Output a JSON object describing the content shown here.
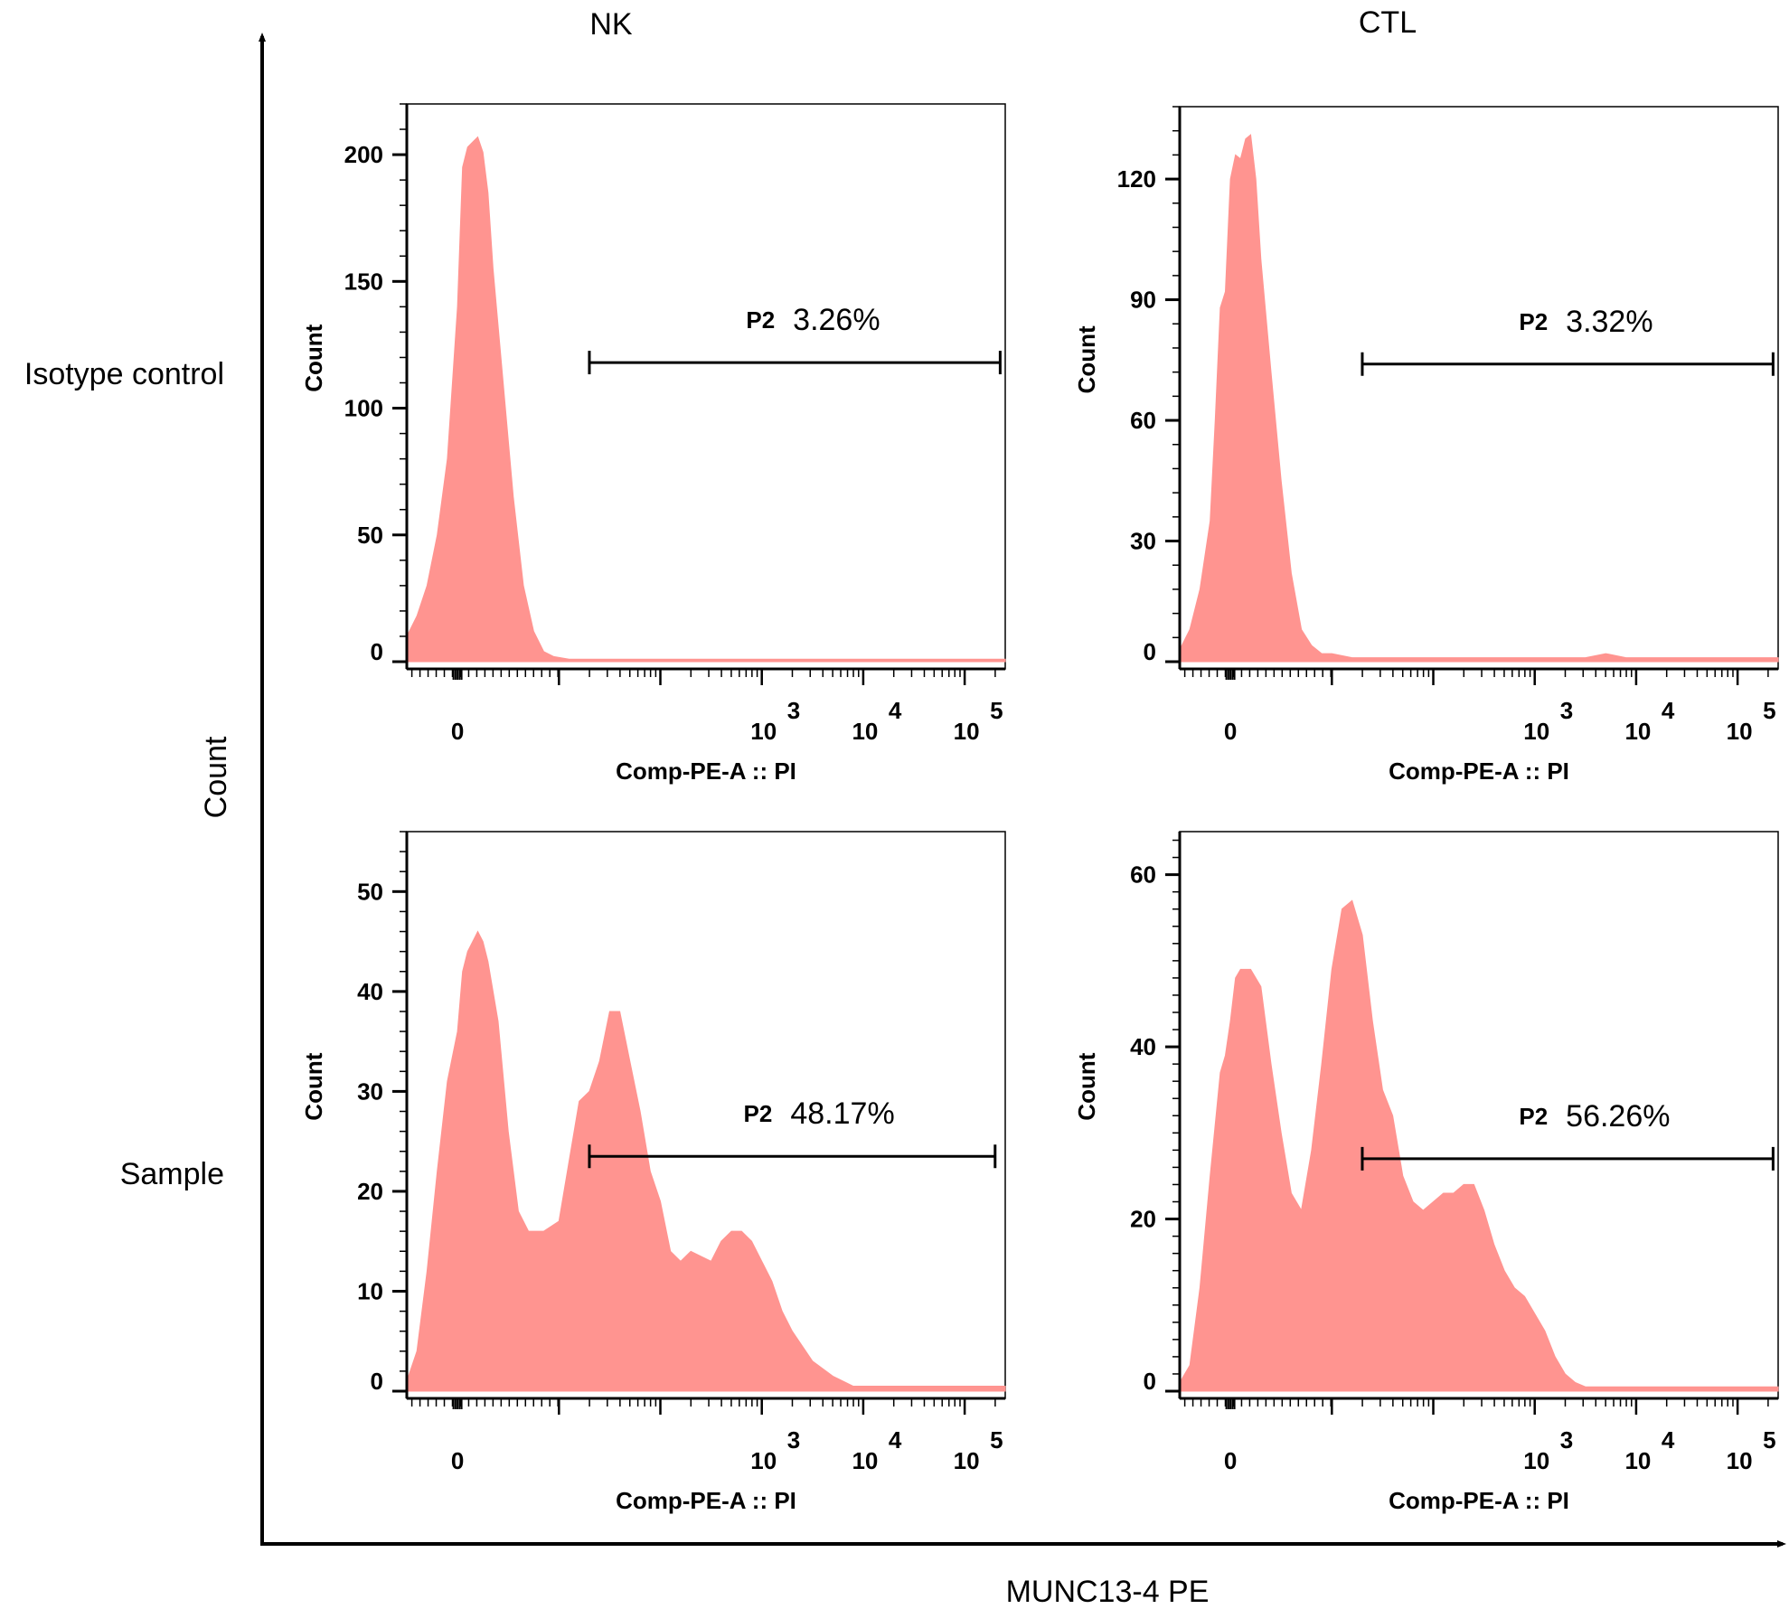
{
  "figure": {
    "col_labels": [
      "NK",
      "CTL"
    ],
    "row_labels": [
      "Isotype control",
      "Sample"
    ],
    "y_label": "Count",
    "x_label": "MUNC13-4 PE"
  },
  "colors": {
    "fill": "#ff9490",
    "axis": "#000000"
  },
  "chart_data": [
    {
      "type": "area",
      "panel": "NK / Isotype control",
      "xlabel": "Comp-PE-A :: PI",
      "ylabel": "Count",
      "ylim": [
        0,
        220
      ],
      "y_ticks": [
        "0",
        "50",
        "100",
        "150",
        "200"
      ],
      "y_tick_values": [
        0,
        50,
        100,
        150,
        200
      ],
      "y_minor_step": 10,
      "x_ticks": [
        {
          "base": "0",
          "exp": ""
        },
        {
          "base": "10",
          "exp": "3"
        },
        {
          "base": "10",
          "exp": "4"
        },
        {
          "base": "10",
          "exp": "5"
        }
      ],
      "x_tick_values": [
        0,
        3,
        4,
        5
      ],
      "x_range": [
        -0.5,
        5.4
      ],
      "x_units": "axis position: 0 = zero channel, 3/4/5 = log10 decades",
      "gate": {
        "name": "P2",
        "percent": "3.26%",
        "x_start": 1.3,
        "x_end": 5.35,
        "y": 118
      },
      "series": [
        {
          "name": "Count",
          "x": [
            -0.5,
            -0.4,
            -0.3,
            -0.2,
            -0.1,
            0.0,
            0.05,
            0.1,
            0.15,
            0.2,
            0.25,
            0.3,
            0.35,
            0.45,
            0.55,
            0.65,
            0.75,
            0.85,
            0.95,
            1.1,
            1.3,
            1.6,
            2.0,
            3.0,
            4.0,
            5.0,
            5.4
          ],
          "y": [
            10,
            18,
            30,
            50,
            80,
            140,
            195,
            203,
            205,
            207,
            201,
            185,
            155,
            110,
            65,
            30,
            12,
            4,
            2,
            1,
            1,
            1,
            1,
            1,
            1,
            1,
            1
          ]
        }
      ]
    },
    {
      "type": "area",
      "panel": "CTL / Isotype control",
      "xlabel": "Comp-PE-A :: PI",
      "ylabel": "Count",
      "ylim": [
        0,
        138
      ],
      "y_ticks": [
        "0",
        "30",
        "60",
        "90",
        "120"
      ],
      "y_tick_values": [
        0,
        30,
        60,
        90,
        120
      ],
      "y_minor_step": 6,
      "x_ticks": [
        {
          "base": "0",
          "exp": ""
        },
        {
          "base": "10",
          "exp": "3"
        },
        {
          "base": "10",
          "exp": "4"
        },
        {
          "base": "10",
          "exp": "5"
        }
      ],
      "x_tick_values": [
        0,
        3,
        4,
        5
      ],
      "x_range": [
        -0.5,
        5.4
      ],
      "x_units": "axis position: 0 = zero channel, 3/4/5 = log10 decades",
      "gate": {
        "name": "P2",
        "percent": "3.32%",
        "x_start": 1.3,
        "x_end": 5.35,
        "y": 74
      },
      "series": [
        {
          "name": "Count",
          "x": [
            -0.5,
            -0.4,
            -0.3,
            -0.2,
            -0.15,
            -0.1,
            -0.05,
            0.0,
            0.05,
            0.1,
            0.15,
            0.2,
            0.25,
            0.3,
            0.4,
            0.5,
            0.6,
            0.7,
            0.8,
            0.9,
            1.0,
            1.2,
            1.5,
            2.0,
            2.6,
            3.0,
            3.5,
            3.7,
            3.9,
            4.2,
            5.0,
            5.4
          ],
          "y": [
            3,
            8,
            18,
            35,
            60,
            88,
            92,
            120,
            126,
            125,
            130,
            131,
            120,
            100,
            72,
            45,
            22,
            8,
            4,
            2,
            2,
            1,
            1,
            1,
            1,
            1,
            1,
            2,
            1,
            1,
            1,
            1
          ]
        }
      ]
    },
    {
      "type": "area",
      "panel": "NK / Sample",
      "xlabel": "Comp-PE-A :: PI",
      "ylabel": "Count",
      "ylim": [
        0,
        56
      ],
      "y_ticks": [
        "0",
        "10",
        "20",
        "30",
        "40",
        "50"
      ],
      "y_tick_values": [
        0,
        10,
        20,
        30,
        40,
        50
      ],
      "y_minor_step": 2,
      "x_ticks": [
        {
          "base": "0",
          "exp": ""
        },
        {
          "base": "10",
          "exp": "3"
        },
        {
          "base": "10",
          "exp": "4"
        },
        {
          "base": "10",
          "exp": "5"
        }
      ],
      "x_tick_values": [
        0,
        3,
        4,
        5
      ],
      "x_range": [
        -0.5,
        5.4
      ],
      "x_units": "axis position: 0 = zero channel, 3/4/5 = log10 decades",
      "gate": {
        "name": "P2",
        "percent": "48.17%",
        "x_start": 1.3,
        "x_end": 5.3,
        "y": 23.5
      },
      "series": [
        {
          "name": "Count",
          "x": [
            -0.5,
            -0.4,
            -0.3,
            -0.2,
            -0.1,
            0.0,
            0.05,
            0.1,
            0.15,
            0.2,
            0.25,
            0.3,
            0.4,
            0.5,
            0.6,
            0.7,
            0.85,
            1.0,
            1.2,
            1.3,
            1.4,
            1.5,
            1.6,
            1.7,
            1.8,
            1.9,
            2.0,
            2.1,
            2.2,
            2.3,
            2.5,
            2.6,
            2.7,
            2.8,
            2.9,
            3.0,
            3.1,
            3.2,
            3.3,
            3.5,
            3.7,
            3.9,
            4.2,
            5.0,
            5.4
          ],
          "y": [
            1,
            4,
            12,
            22,
            31,
            36,
            42,
            44,
            45,
            46,
            45,
            43,
            37,
            26,
            18,
            16,
            16,
            17,
            29,
            30,
            33,
            38,
            38,
            33,
            28,
            22,
            19,
            14,
            13,
            14,
            13,
            15,
            16,
            16,
            15,
            13,
            11,
            8,
            6,
            3,
            1.5,
            0.5,
            0.5,
            0.5,
            0.5
          ]
        }
      ]
    },
    {
      "type": "area",
      "panel": "CTL / Sample",
      "xlabel": "Comp-PE-A :: PI",
      "ylabel": "Count",
      "ylim": [
        0,
        65
      ],
      "y_ticks": [
        "0",
        "20",
        "40",
        "60"
      ],
      "y_tick_values": [
        0,
        20,
        40,
        60
      ],
      "y_minor_step": 2,
      "x_ticks": [
        {
          "base": "0",
          "exp": ""
        },
        {
          "base": "10",
          "exp": "3"
        },
        {
          "base": "10",
          "exp": "4"
        },
        {
          "base": "10",
          "exp": "5"
        }
      ],
      "x_tick_values": [
        0,
        3,
        4,
        5
      ],
      "x_range": [
        -0.5,
        5.4
      ],
      "x_units": "axis position: 0 = zero channel, 3/4/5 = log10 decades",
      "gate": {
        "name": "P2",
        "percent": "56.26%",
        "x_start": 1.3,
        "x_end": 5.35,
        "y": 27
      },
      "series": [
        {
          "name": "Count",
          "x": [
            -0.5,
            -0.4,
            -0.3,
            -0.2,
            -0.1,
            -0.05,
            0.0,
            0.05,
            0.1,
            0.2,
            0.3,
            0.4,
            0.5,
            0.6,
            0.7,
            0.8,
            0.9,
            1.0,
            1.1,
            1.2,
            1.3,
            1.4,
            1.5,
            1.6,
            1.7,
            1.8,
            1.9,
            2.0,
            2.1,
            2.2,
            2.3,
            2.4,
            2.5,
            2.6,
            2.7,
            2.8,
            2.9,
            3.0,
            3.1,
            3.2,
            3.3,
            3.4,
            3.5,
            3.6,
            3.8,
            4.2,
            5.0,
            5.4
          ],
          "y": [
            1,
            3,
            12,
            25,
            37,
            39,
            43,
            48,
            49,
            49,
            47,
            38,
            30,
            23,
            21,
            28,
            38,
            49,
            56,
            57,
            53,
            43,
            35,
            32,
            25,
            22,
            21,
            22,
            23,
            23,
            24,
            24,
            21,
            17,
            14,
            12,
            11,
            9,
            7,
            4,
            2,
            1,
            0.5,
            0.5,
            0.5,
            0.5,
            0.5,
            0.5
          ]
        }
      ]
    }
  ]
}
